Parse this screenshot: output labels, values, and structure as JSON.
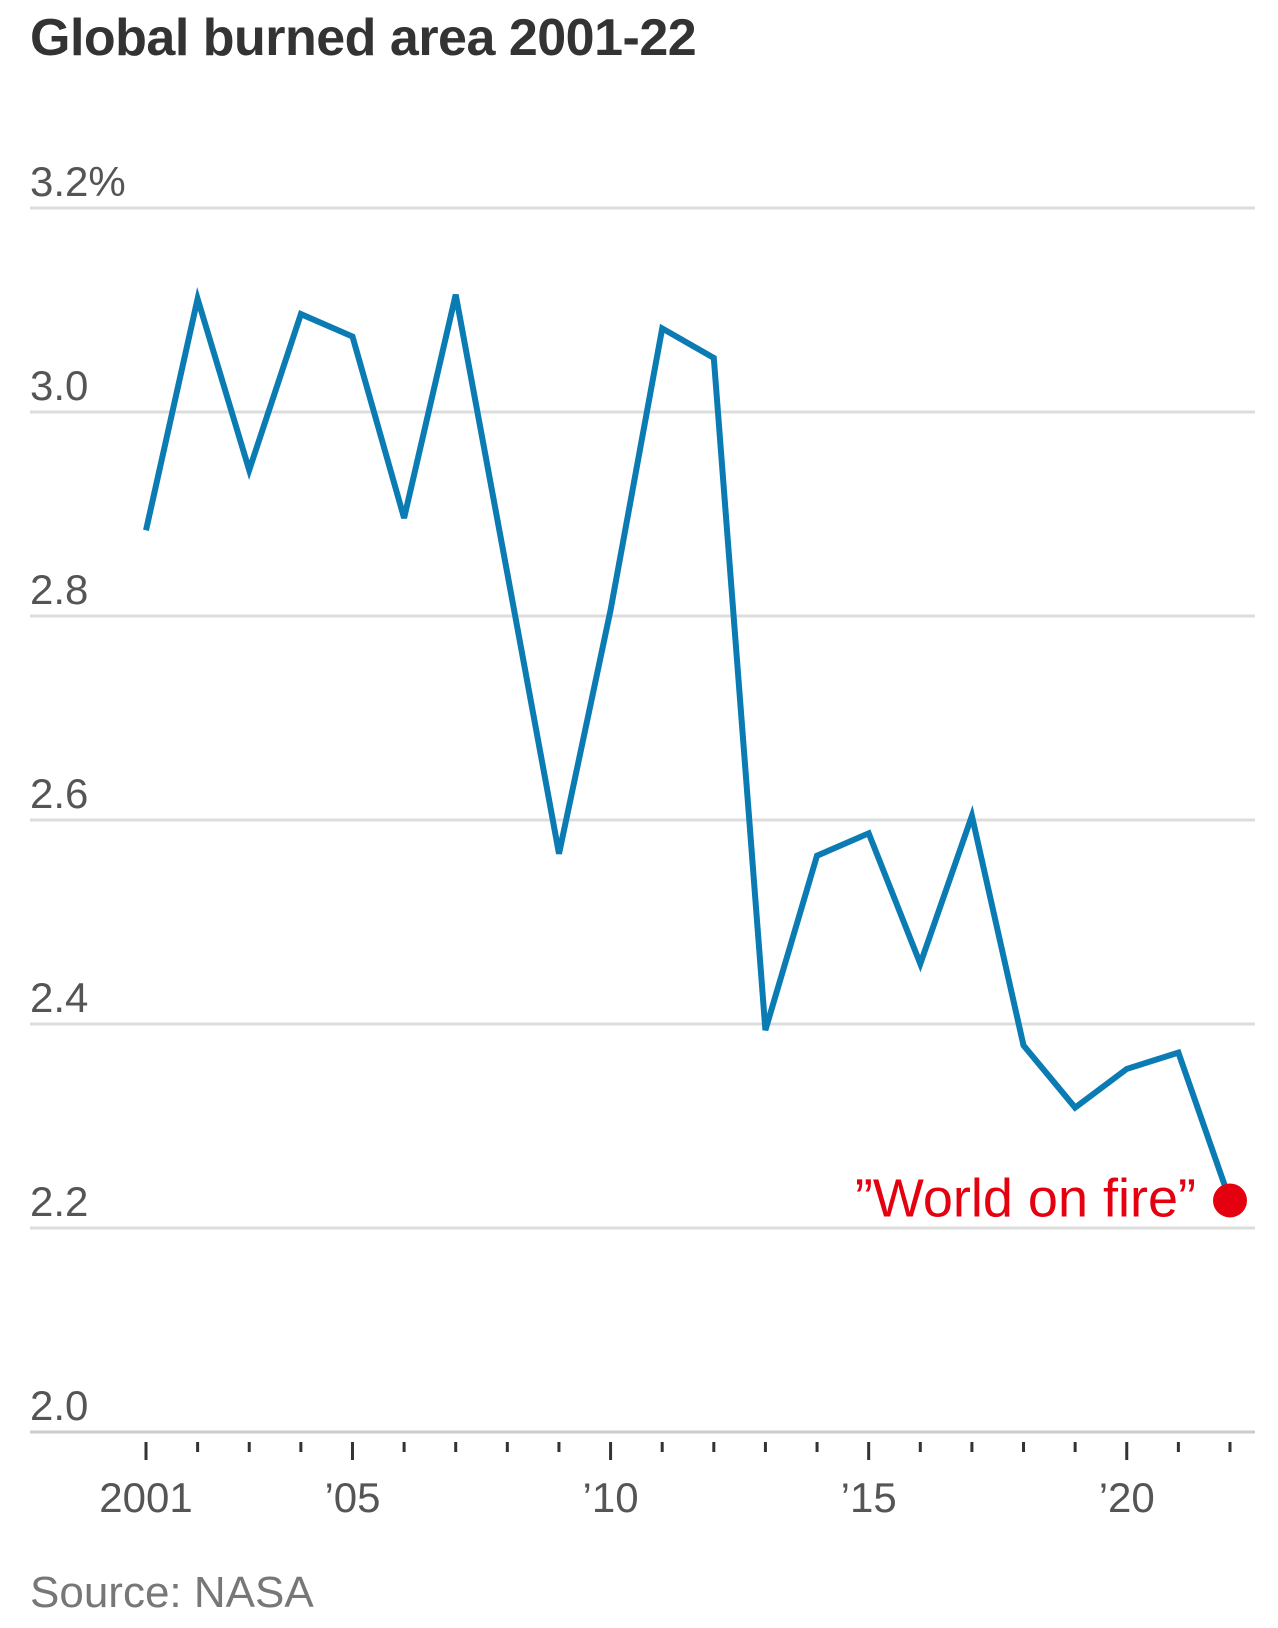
{
  "title": "Global burned area 2001-22",
  "source": "Source: NASA",
  "colors": {
    "line": "#0a7cb3",
    "highlight": "#e5000f",
    "grid": "#dddddd",
    "axis": "#cccccc",
    "tick": "#333333",
    "text": "#555555"
  },
  "chart_data": {
    "type": "line",
    "title": "Global burned area 2001-22",
    "xlabel": "",
    "ylabel": "",
    "x": [
      2001,
      2002,
      2003,
      2004,
      2005,
      2006,
      2007,
      2008,
      2009,
      2010,
      2011,
      2012,
      2013,
      2014,
      2015,
      2016,
      2017,
      2018,
      2019,
      2020,
      2021,
      2022
    ],
    "series": [
      {
        "values": [
          2.884,
          3.111,
          2.943,
          3.096,
          3.074,
          2.896,
          3.115,
          2.842,
          2.567,
          2.806,
          3.082,
          3.053,
          2.394,
          2.565,
          2.587,
          2.459,
          2.604,
          2.379,
          2.318,
          2.356,
          2.372,
          2.227
        ]
      }
    ],
    "xlim": [
      2001,
      2022
    ],
    "ylim": [
      2.0,
      3.2
    ],
    "y_ticks": [
      {
        "value": 3.2,
        "label": "3.2%"
      },
      {
        "value": 3.0,
        "label": "3.0"
      },
      {
        "value": 2.8,
        "label": "2.8"
      },
      {
        "value": 2.6,
        "label": "2.6"
      },
      {
        "value": 2.4,
        "label": "2.4"
      },
      {
        "value": 2.2,
        "label": "2.2"
      },
      {
        "value": 2.0,
        "label": "2.0"
      }
    ],
    "x_ticks": [
      {
        "value": 2001,
        "label": "2001"
      },
      {
        "value": 2005,
        "label": "’05"
      },
      {
        "value": 2010,
        "label": "’10"
      },
      {
        "value": 2015,
        "label": "’15"
      },
      {
        "value": 2020,
        "label": "’20"
      }
    ],
    "grid": true,
    "legend": "none",
    "annotations": [
      {
        "x": 2022,
        "y": 2.227,
        "text": "”World on fire”",
        "marker": "dot"
      }
    ]
  }
}
